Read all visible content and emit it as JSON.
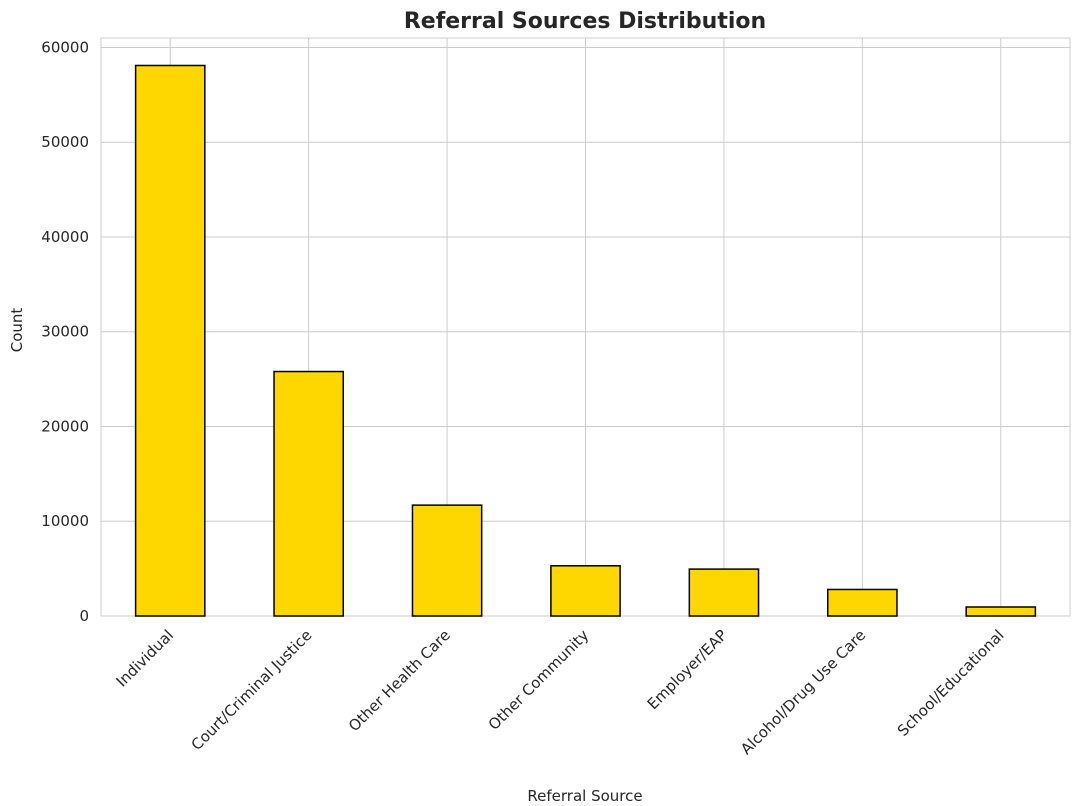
{
  "chart_data": {
    "type": "bar",
    "title": "Referral Sources Distribution",
    "xlabel": "Referral Source",
    "ylabel": "Count",
    "categories": [
      "Individual",
      "Court/Criminal Justice",
      "Other Health Care",
      "Other Community",
      "Employer/EAP",
      "Alcohol/Drug Use Care",
      "School/Educational"
    ],
    "values": [
      58100,
      25800,
      11700,
      5300,
      4950,
      2800,
      950
    ],
    "ylim": [
      0,
      61000
    ],
    "yticks": [
      0,
      10000,
      20000,
      30000,
      40000,
      50000,
      60000
    ],
    "grid": true,
    "bar_color": "#FFD700",
    "bar_edge_color": "#000000"
  }
}
